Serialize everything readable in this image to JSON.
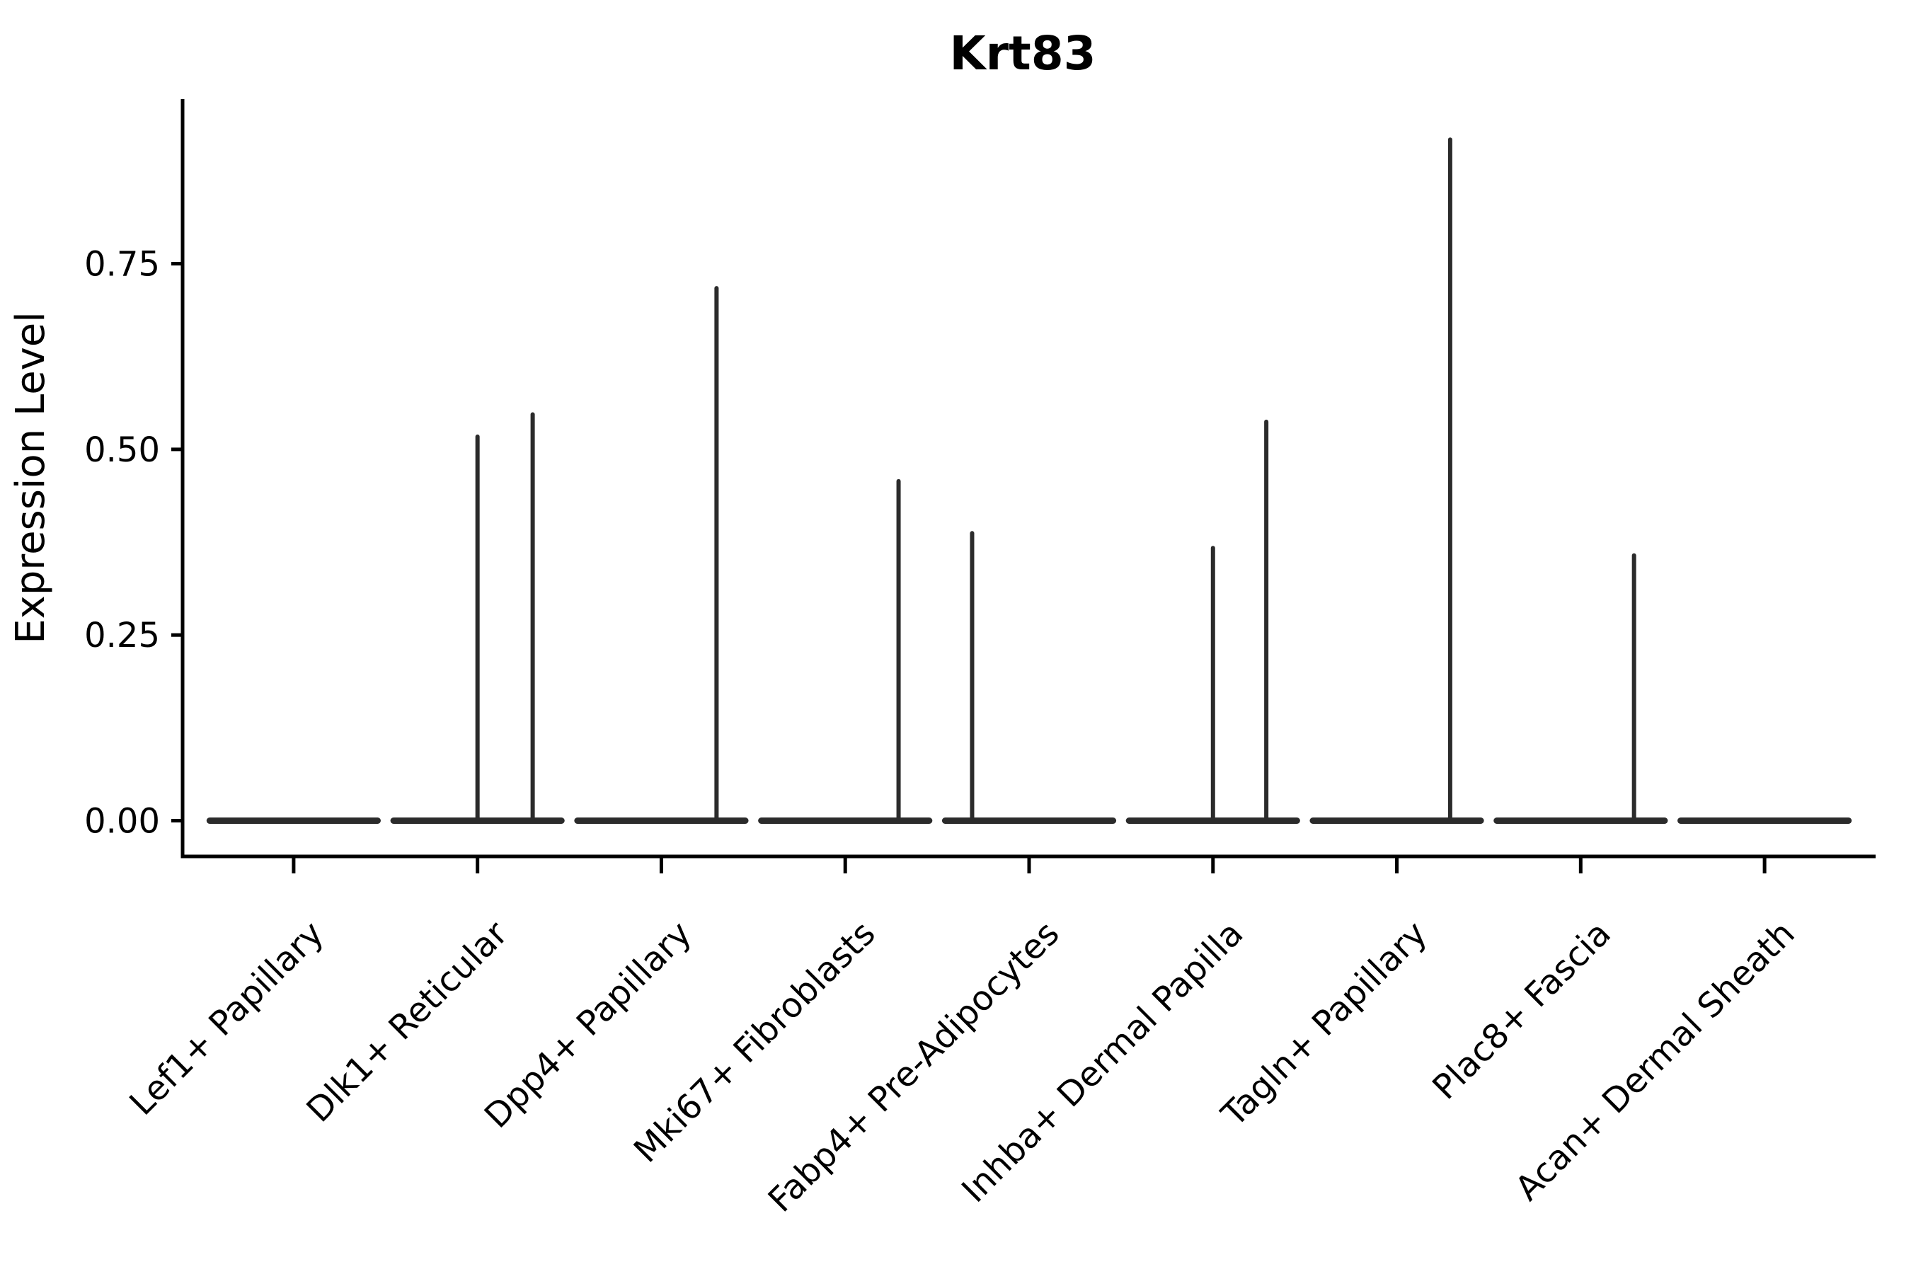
{
  "title": "Krt83",
  "chart_data": {
    "type": "violin",
    "title": "Krt83",
    "xlabel": "",
    "ylabel": "Expression Level",
    "ylim": [
      0,
      0.97
    ],
    "yticks": [
      0.0,
      0.25,
      0.5,
      0.75
    ],
    "ytick_labels": [
      "0.00",
      "0.25",
      "0.50",
      "0.75"
    ],
    "grid": false,
    "legend": "none",
    "categories": [
      "Lef1+ Papillary",
      "Dlk1+ Reticular",
      "Dpp4+ Papillary",
      "Mki67+ Fibroblasts",
      "Fabp4+ Pre-Adipocytes",
      "Inhba+ Dermal Papilla",
      "Tagln+ Papillary",
      "Plac8+ Fascia",
      "Acan+ Dermal Sheath"
    ],
    "series": [
      {
        "category": "Lef1+ Papillary",
        "baseline_value": 0.0,
        "spikes": []
      },
      {
        "category": "Dlk1+ Reticular",
        "baseline_value": 0.0,
        "spikes": [
          {
            "x_offset": 0.0,
            "value": 0.52
          },
          {
            "x_offset": 0.3,
            "value": 0.55
          }
        ]
      },
      {
        "category": "Dpp4+ Papillary",
        "baseline_value": 0.0,
        "spikes": [
          {
            "x_offset": 0.3,
            "value": 0.72
          }
        ]
      },
      {
        "category": "Mki67+ Fibroblasts",
        "baseline_value": 0.0,
        "spikes": [
          {
            "x_offset": 0.29,
            "value": 0.46
          }
        ]
      },
      {
        "category": "Fabp4+ Pre-Adipocytes",
        "baseline_value": 0.0,
        "spikes": [
          {
            "x_offset": -0.31,
            "value": 0.39
          }
        ]
      },
      {
        "category": "Inhba+ Dermal Papilla",
        "baseline_value": 0.0,
        "spikes": [
          {
            "x_offset": 0.0,
            "value": 0.37
          },
          {
            "x_offset": 0.29,
            "value": 0.54
          }
        ]
      },
      {
        "category": "Tagln+ Papillary",
        "baseline_value": 0.0,
        "spikes": [
          {
            "x_offset": 0.29,
            "value": 0.92
          }
        ]
      },
      {
        "category": "Plac8+ Fascia",
        "baseline_value": 0.0,
        "spikes": [
          {
            "x_offset": 0.29,
            "value": 0.36
          }
        ]
      },
      {
        "category": "Acan+ Dermal Sheath",
        "baseline_value": 0.0,
        "spikes": []
      }
    ],
    "style": {
      "violin_color": "#2b2b2b",
      "axis_color": "#000000",
      "background": "#ffffff"
    }
  }
}
